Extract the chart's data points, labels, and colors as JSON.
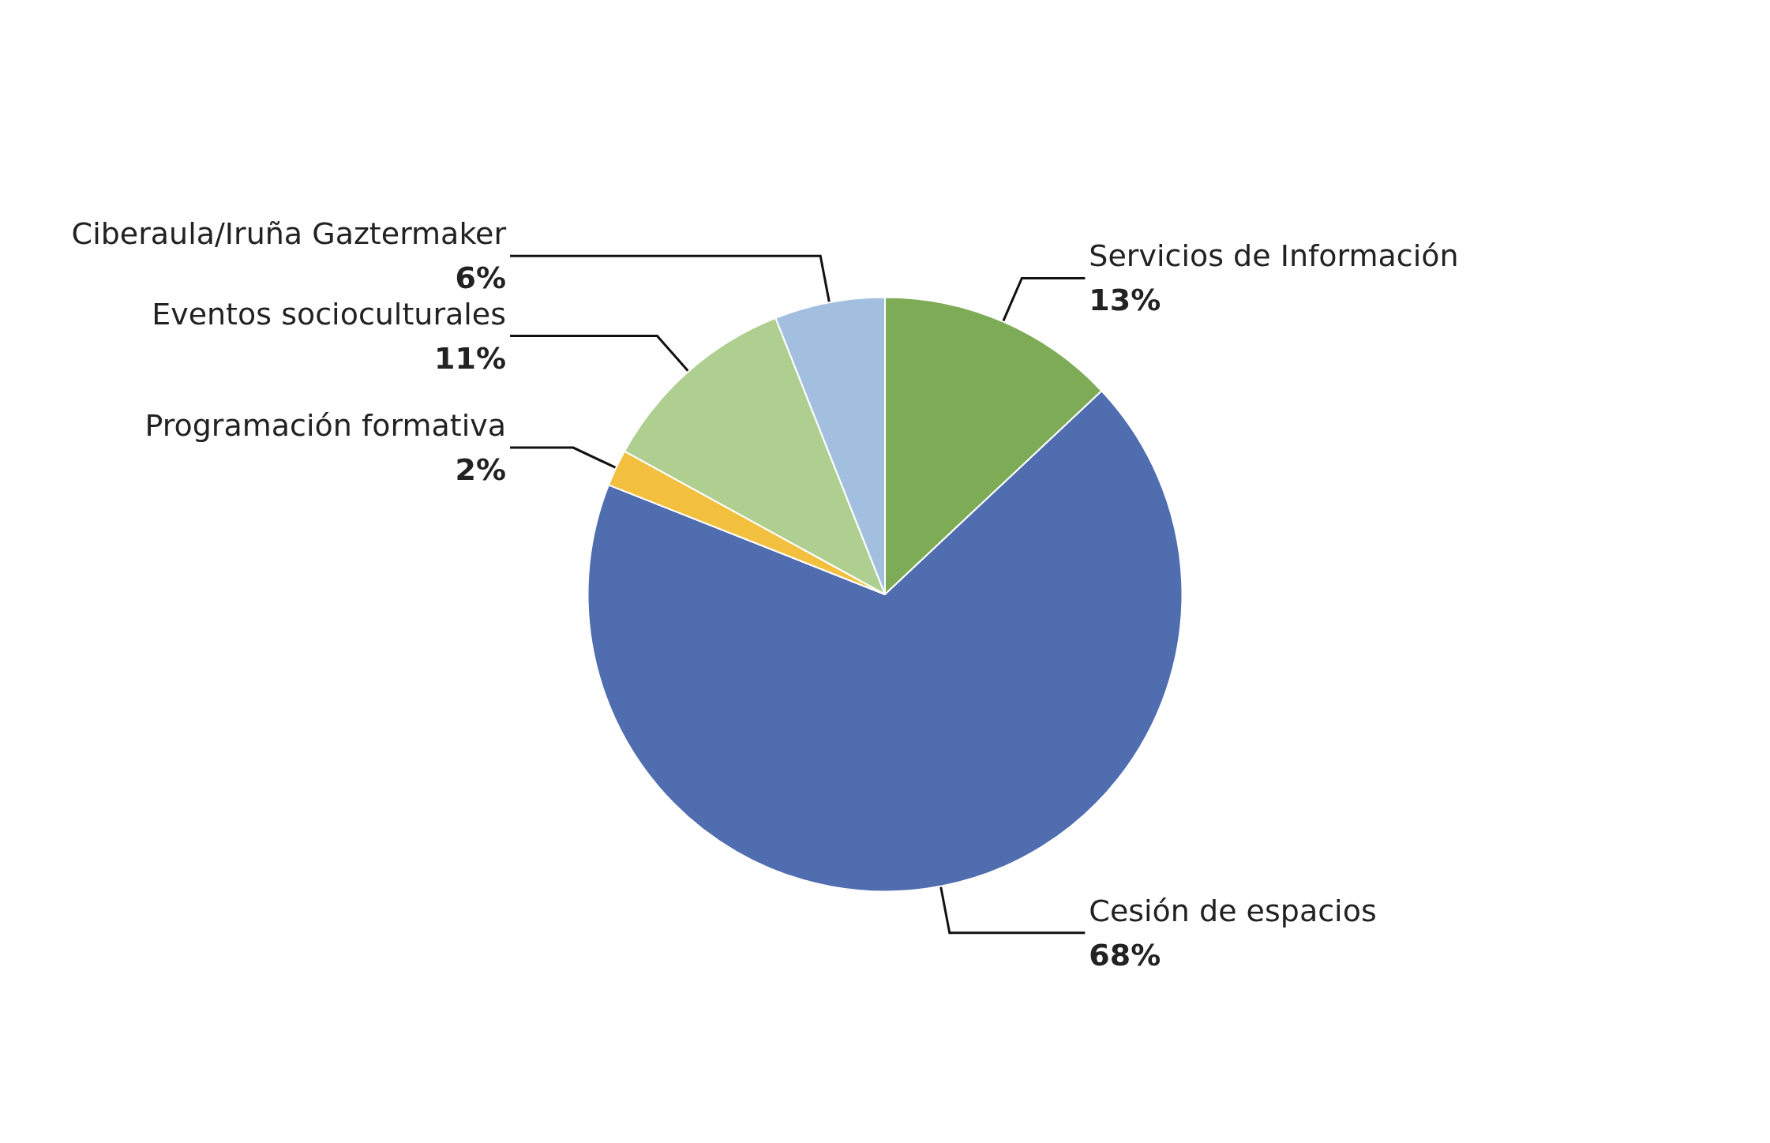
{
  "chart_data": {
    "type": "pie",
    "categories": [
      "Servicios de Información",
      "Cesión de espacios",
      "Programación formativa",
      "Eventos socioculturales",
      "Ciberaula/Iruña Gaztermaker"
    ],
    "values": [
      13,
      68,
      2,
      11,
      6
    ],
    "value_labels": [
      "13%",
      "68%",
      "2%",
      "11%",
      "6%"
    ],
    "colors": [
      "#7eab55",
      "#4f6daf",
      "#f2bf3f",
      "#aecf90",
      "#a3bfe0"
    ],
    "legend": false
  }
}
